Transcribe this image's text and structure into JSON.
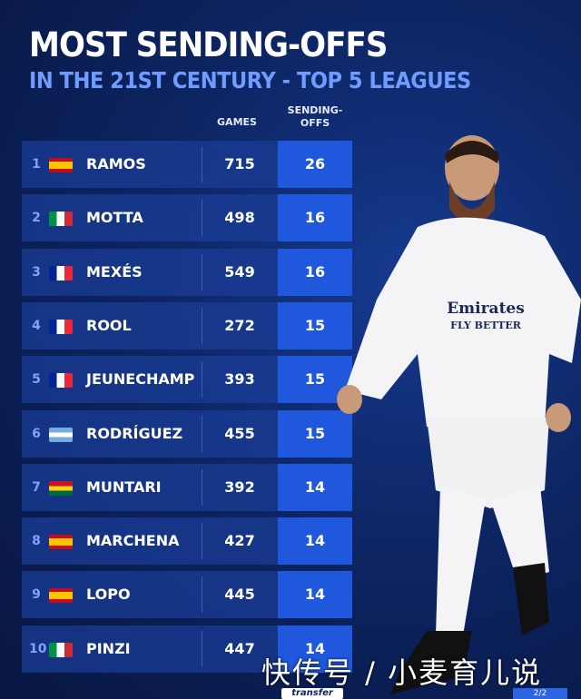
{
  "title": "MOST SENDING-OFFS",
  "subtitle": "IN THE 21ST CENTURY - TOP 5 LEAGUES",
  "columns": {
    "games": "GAMES",
    "sending_offs_1": "SENDING-",
    "sending_offs_2": "OFFS"
  },
  "colors": {
    "row_bg": "#193c96",
    "highlight": "#1f58dc",
    "subtitle": "#6f9cff"
  },
  "chart_data": {
    "type": "table",
    "title": "MOST SENDING-OFFS",
    "subtitle": "IN THE 21ST CENTURY - TOP 5 LEAGUES",
    "headers": [
      "",
      "",
      "",
      "GAMES",
      "SENDING-OFFS"
    ],
    "rows": [
      {
        "rank": "1",
        "flag": "spain",
        "name": "RAMOS",
        "games": "715",
        "sending_offs": "26"
      },
      {
        "rank": "2",
        "flag": "italy",
        "name": "MOTTA",
        "games": "498",
        "sending_offs": "16"
      },
      {
        "rank": "3",
        "flag": "france",
        "name": "MEXÉS",
        "games": "549",
        "sending_offs": "16"
      },
      {
        "rank": "4",
        "flag": "france",
        "name": "ROOL",
        "games": "272",
        "sending_offs": "15"
      },
      {
        "rank": "5",
        "flag": "france",
        "name": "JEUNECHAMP",
        "games": "393",
        "sending_offs": "15"
      },
      {
        "rank": "6",
        "flag": "argentina",
        "name": "RODRÍGUEZ",
        "games": "455",
        "sending_offs": "15"
      },
      {
        "rank": "7",
        "flag": "ghana",
        "name": "MUNTARI",
        "games": "392",
        "sending_offs": "14"
      },
      {
        "rank": "8",
        "flag": "spain",
        "name": "MARCHENA",
        "games": "427",
        "sending_offs": "14"
      },
      {
        "rank": "9",
        "flag": "spain",
        "name": "LOPO",
        "games": "445",
        "sending_offs": "14"
      },
      {
        "rank": "10",
        "flag": "italy",
        "name": "PINZI",
        "games": "447",
        "sending_offs": "14"
      }
    ]
  },
  "player_shirt": {
    "sponsor": "Emirates",
    "tagline": "FLY BETTER"
  },
  "watermark": "快传号 / 小麦育儿说",
  "logo": "transfer",
  "page_indicator": "2/2"
}
